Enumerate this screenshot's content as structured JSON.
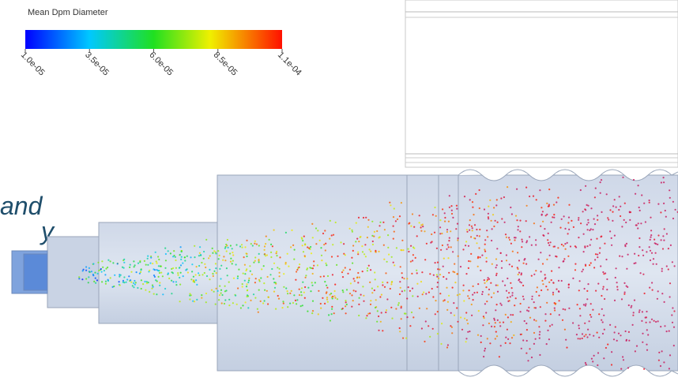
{
  "legend": {
    "title": "Mean Dpm Diameter",
    "ticks": [
      {
        "value": 1e-05,
        "label": "1.0e-05"
      },
      {
        "value": 3.5e-05,
        "label": "3.5e-05"
      },
      {
        "value": 6e-05,
        "label": "6.0e-05"
      },
      {
        "value": 8.5e-05,
        "label": "8.5e-05"
      },
      {
        "value": 0.00011,
        "label": "1.1e-04"
      }
    ]
  },
  "caption": {
    "line1": "and",
    "line2": "y"
  }
}
